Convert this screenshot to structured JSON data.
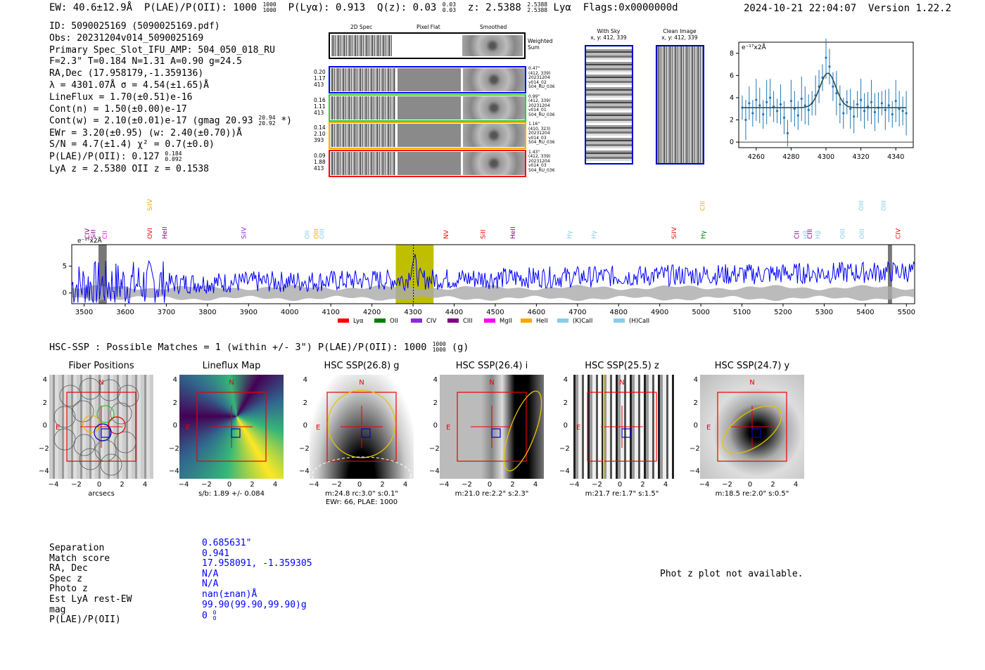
{
  "header": {
    "ew": "EW: 40.6±12.9Å",
    "plae_label": "P(LAE)/P(OII): 1000",
    "plae_hi": "1000",
    "plae_lo": "1000",
    "plya": "P(Lyα): 0.913",
    "qz_label": "Q(z): 0.03",
    "qz_hi": "0.03",
    "qz_lo": "0.03",
    "z_label": "z: 2.5388",
    "z_hi": "2.5388",
    "z_lo": "2.5388",
    "line": "Lyα",
    "flags": "Flags:0x0000000d",
    "timestamp": "2024-10-21 22:04:07",
    "version": "Version 1.22.2"
  },
  "info": {
    "id": "ID: 5090025169 (5090025169.pdf)",
    "obs": "Obs: 20231204v014_5090025169",
    "primary": "Primary Spec_Slot_IFU_AMP: 504_050_018_RU",
    "fparams": "F=2.3\"  T=0.184  N=1.31  A=0.90  g=24.5",
    "radec": "RA,Dec (17.958179,-1.359136)",
    "lambda": "λ = 4301.07Å  σ = 4.54(±1.65)Å",
    "lineflux": "LineFlux = 1.70(±0.51)e-16",
    "contn": "Cont(n) = 1.50(±0.00)e-17",
    "contw": "Cont(w) = 2.10(±0.01)e-17 (gmag 20.93",
    "contw_hi": "20.94",
    "contw_lo": "20.92",
    "contw_end": "*)",
    "ewr": "EWr = 3.20(±0.95) (w: 2.40(±0.70))Å",
    "sn": "S/N = 4.7(±1.4)  χ² = 0.7(±0.0)",
    "plae": "P(LAE)/P(OII): 0.127",
    "plae_hi": "0.184",
    "plae_lo": "0.092",
    "lyaz": "LyA z = 2.5380  OII z = 0.1538"
  },
  "strips": {
    "col_2d": "2D Spec",
    "col_flat": "Pixel Flat",
    "col_smooth": "Smoothed",
    "weighted": "Weighted Sum",
    "rows": [
      {
        "left": [
          "0.20",
          "1.17",
          "413"
        ],
        "right": [
          "0.47\"",
          "(412, 339)",
          "20231204",
          "v014_02",
          "504_RU_036"
        ],
        "color": "#0000ff"
      },
      {
        "left": [
          "0.16",
          "1.11",
          "413"
        ],
        "right": [
          "0.99\"",
          "(412, 339)",
          "20231204",
          "v014_01",
          "504_RU_036"
        ],
        "color": "#33cc33"
      },
      {
        "left": [
          "0.14",
          "2.10",
          "393"
        ],
        "right": [
          "1.16\"",
          "(410, 323)",
          "20231204",
          "v014_03",
          "504_RU_036"
        ],
        "color": "#ffaa00"
      },
      {
        "left": [
          "0.09",
          "1.88",
          "413"
        ],
        "right": [
          "1.43\"",
          "(412, 339)",
          "20231204",
          "v014_03",
          "504_RU_036"
        ],
        "color": "#ff0000"
      }
    ]
  },
  "cutouts": {
    "with_sky": "With Sky",
    "with_sky_xy": "x, y: 412, 339",
    "clean": "Clean Image",
    "clean_xy": "x, y: 412, 339"
  },
  "zoom_chart": {
    "unit": "e⁻¹⁷x2Å"
  },
  "chart_data": [
    {
      "type": "scatter",
      "title": "",
      "ylabel": "e-17x2Å",
      "xlim": [
        4250,
        4350
      ],
      "ylim": [
        -0.5,
        9
      ],
      "xticks": [
        4260,
        4280,
        4300,
        4320,
        4340
      ],
      "yticks": [
        0,
        2,
        4,
        6,
        8
      ],
      "x": [
        4252,
        4254,
        4256,
        4258,
        4260,
        4262,
        4264,
        4266,
        4268,
        4270,
        4272,
        4274,
        4276,
        4278,
        4280,
        4282,
        4284,
        4286,
        4288,
        4290,
        4292,
        4294,
        4296,
        4298,
        4300,
        4302,
        4304,
        4306,
        4308,
        4310,
        4312,
        4314,
        4316,
        4318,
        4320,
        4322,
        4324,
        4326,
        4328,
        4330,
        4332,
        4334,
        4336,
        4338,
        4340,
        4342,
        4344,
        4346
      ],
      "y": [
        3.1,
        2.0,
        3.5,
        2.6,
        3.8,
        3.3,
        2.5,
        3.6,
        4.0,
        3.2,
        2.8,
        3.4,
        2.2,
        0.8,
        3.7,
        3.0,
        2.4,
        3.9,
        3.3,
        2.9,
        3.5,
        4.2,
        5.0,
        5.8,
        7.6,
        6.8,
        5.0,
        4.4,
        3.4,
        2.6,
        3.6,
        3.0,
        2.3,
        3.4,
        3.8,
        2.8,
        3.2,
        3.6,
        2.7,
        3.1,
        3.5,
        2.9,
        3.3,
        2.5,
        3.7,
        3.0,
        2.8,
        2.6
      ],
      "fit": {
        "base": 3.1,
        "peak": 6.2,
        "center": 4301.07,
        "sigma": 4.54
      }
    },
    {
      "type": "line",
      "title": "",
      "xlabel": "",
      "ylabel": "e-17x2Å",
      "xlim": [
        3470,
        5520
      ],
      "ylim": [
        -2,
        9
      ],
      "xticks": [
        3500,
        3600,
        3700,
        3800,
        3900,
        4000,
        4100,
        4200,
        4300,
        4400,
        4500,
        4600,
        4700,
        4800,
        4900,
        5000,
        5100,
        5200,
        5300,
        5400,
        5500
      ],
      "yticks": [
        0,
        5
      ],
      "highlight_range": [
        4258,
        4350
      ],
      "marker_x": 4301,
      "masked_ranges": [
        [
          3535,
          3555
        ],
        [
          5455,
          5465
        ]
      ],
      "legend": [
        {
          "label": "Lyα",
          "color": "#ff0000"
        },
        {
          "label": "OII",
          "color": "#008000"
        },
        {
          "label": "CIV",
          "color": "#8a2be2"
        },
        {
          "label": "CIII",
          "color": "#800080"
        },
        {
          "label": "MgII",
          "color": "#ff00ff"
        },
        {
          "label": "HeII",
          "color": "#ffa500"
        },
        {
          "label": "(K)CaII",
          "color": "#87ceeb"
        },
        {
          "label": "(H)CaII",
          "color": "#87ceeb"
        }
      ],
      "line_labels": [
        {
          "label": "CIV",
          "x": 3508,
          "color": "#800080",
          "row": 0
        },
        {
          "label": "SiII",
          "x": 3522,
          "color": "#800080",
          "row": 0
        },
        {
          "label": "CII",
          "x": 3550,
          "color": "#ff00ff",
          "row": 0
        },
        {
          "label": "SiIV",
          "x": 3660,
          "color": "#ffa500",
          "row": 1
        },
        {
          "label": "OVI",
          "x": 3660,
          "color": "#ff0000",
          "row": 0
        },
        {
          "label": "HeII",
          "x": 3696,
          "color": "#800080",
          "row": 0
        },
        {
          "label": "SiIV",
          "x": 3888,
          "color": "#8a2be2",
          "row": 0
        },
        {
          "label": "OII",
          "x": 4042,
          "color": "#87ceeb",
          "row": 0
        },
        {
          "label": "OIII",
          "x": 4065,
          "color": "#ffa500",
          "row": 0
        },
        {
          "label": "OIII",
          "x": 4078,
          "color": "#87ceeb",
          "row": 0
        },
        {
          "label": "NV",
          "x": 4380,
          "color": "#ff0000",
          "row": 0
        },
        {
          "label": "SiII",
          "x": 4470,
          "color": "#ff0000",
          "row": 0
        },
        {
          "label": "HeII",
          "x": 4543,
          "color": "#800080",
          "row": 0
        },
        {
          "label": "Hγ",
          "x": 4680,
          "color": "#87ceeb",
          "row": 0
        },
        {
          "label": "Hγ",
          "x": 4740,
          "color": "#87ceeb",
          "row": 0
        },
        {
          "label": "SiIV",
          "x": 4935,
          "color": "#ff0000",
          "row": 0
        },
        {
          "label": "CIII",
          "x": 5004,
          "color": "#ffa500",
          "row": 1
        },
        {
          "label": "Hγ",
          "x": 5006,
          "color": "#008000",
          "row": 0
        },
        {
          "label": "CII",
          "x": 5233,
          "color": "#800080",
          "row": 0
        },
        {
          "label": "Hβ",
          "x": 5255,
          "color": "#87ceeb",
          "row": 0
        },
        {
          "label": "CIII",
          "x": 5265,
          "color": "#800080",
          "row": 0
        },
        {
          "label": "Hβ",
          "x": 5285,
          "color": "#87ceeb",
          "row": 0
        },
        {
          "label": "OIII",
          "x": 5345,
          "color": "#87ceeb",
          "row": 0
        },
        {
          "label": "OIII",
          "x": 5390,
          "color": "#87ceeb",
          "row": 1
        },
        {
          "label": "OIII",
          "x": 5392,
          "color": "#87ceeb",
          "row": 0
        },
        {
          "label": "OIII",
          "x": 5445,
          "color": "#87ceeb",
          "row": 1
        },
        {
          "label": "CIV",
          "x": 5480,
          "color": "#ff0000",
          "row": 0
        }
      ]
    }
  ],
  "hsc": {
    "summary": "HSC-SSP : Possible Matches = 1 (within +/- 3\")  P(LAE)/P(OII): 1000",
    "summary_hi": "1000",
    "summary_lo": "1000",
    "summary_end": "(g)",
    "panels": [
      {
        "title": "Fiber Positions",
        "caption": "arcsecs",
        "caption2": ""
      },
      {
        "title": "Lineflux Map",
        "caption": "s/b: 1.89 +/- 0.084",
        "caption2": ""
      },
      {
        "title": "HSC SSP(26.8) g",
        "caption": "m:24.8 rc:3.0\"  s:0.1\"",
        "caption2": "EWr: 66, PLAE: 1000"
      },
      {
        "title": "HSC SSP(26.4) i",
        "caption": "m:21.0  re:2.2\"  s:2.3\"",
        "caption2": ""
      },
      {
        "title": "HSC SSP(25.5) z",
        "caption": "m:21.7  re:1.7\"  s:1.5\"",
        "caption2": ""
      },
      {
        "title": "HSC SSP(24.7) y",
        "caption": "m:18.5  re:2.0\"  s:0.5\"",
        "caption2": ""
      }
    ],
    "yticks": [
      "4",
      "2",
      "0",
      "−2",
      "−4"
    ],
    "xticks": [
      "−4",
      "−2",
      "0",
      "2",
      "4"
    ],
    "north": "N",
    "east": "E"
  },
  "match": {
    "labels": [
      "Separation",
      "Match score",
      "RA, Dec",
      "Spec z",
      "Photo z",
      "Est LyA rest-EW",
      "mag",
      "P(LAE)/P(OII)"
    ],
    "values": [
      "0.685631\"",
      "0.941",
      "17.958091, -1.359305",
      "N/A",
      "N/A",
      "nan(±nan)Å",
      "99.90(99.90,99.90)g",
      "0"
    ],
    "plae_hi": "0",
    "plae_lo": "0",
    "photz_note": "Phot z plot not available."
  }
}
